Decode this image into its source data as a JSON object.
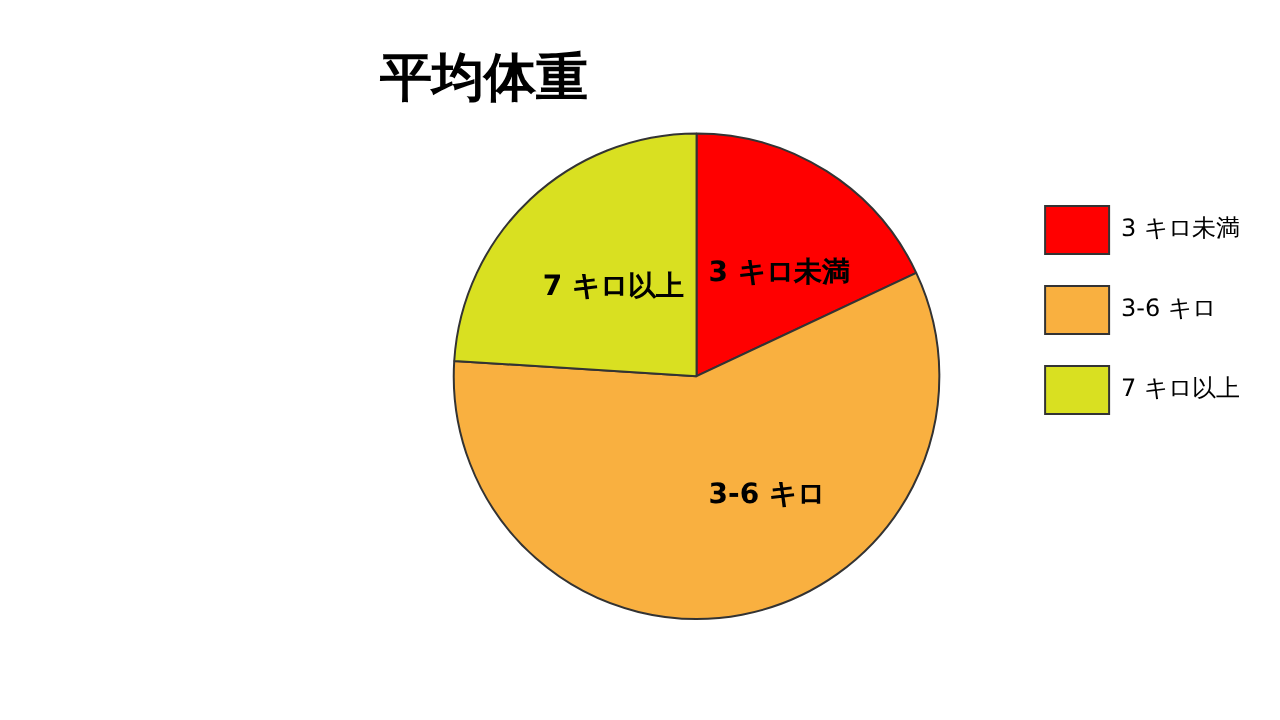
{
  "chart_data": {
    "type": "pie",
    "title": "平均体重",
    "categories": [
      "3 キロ未満",
      "3-6 キロ",
      "7 キロ以上"
    ],
    "values": [
      18,
      58,
      24
    ],
    "colors": [
      "#ff0000",
      "#f9b040",
      "#d9e021"
    ],
    "legend": "right"
  }
}
